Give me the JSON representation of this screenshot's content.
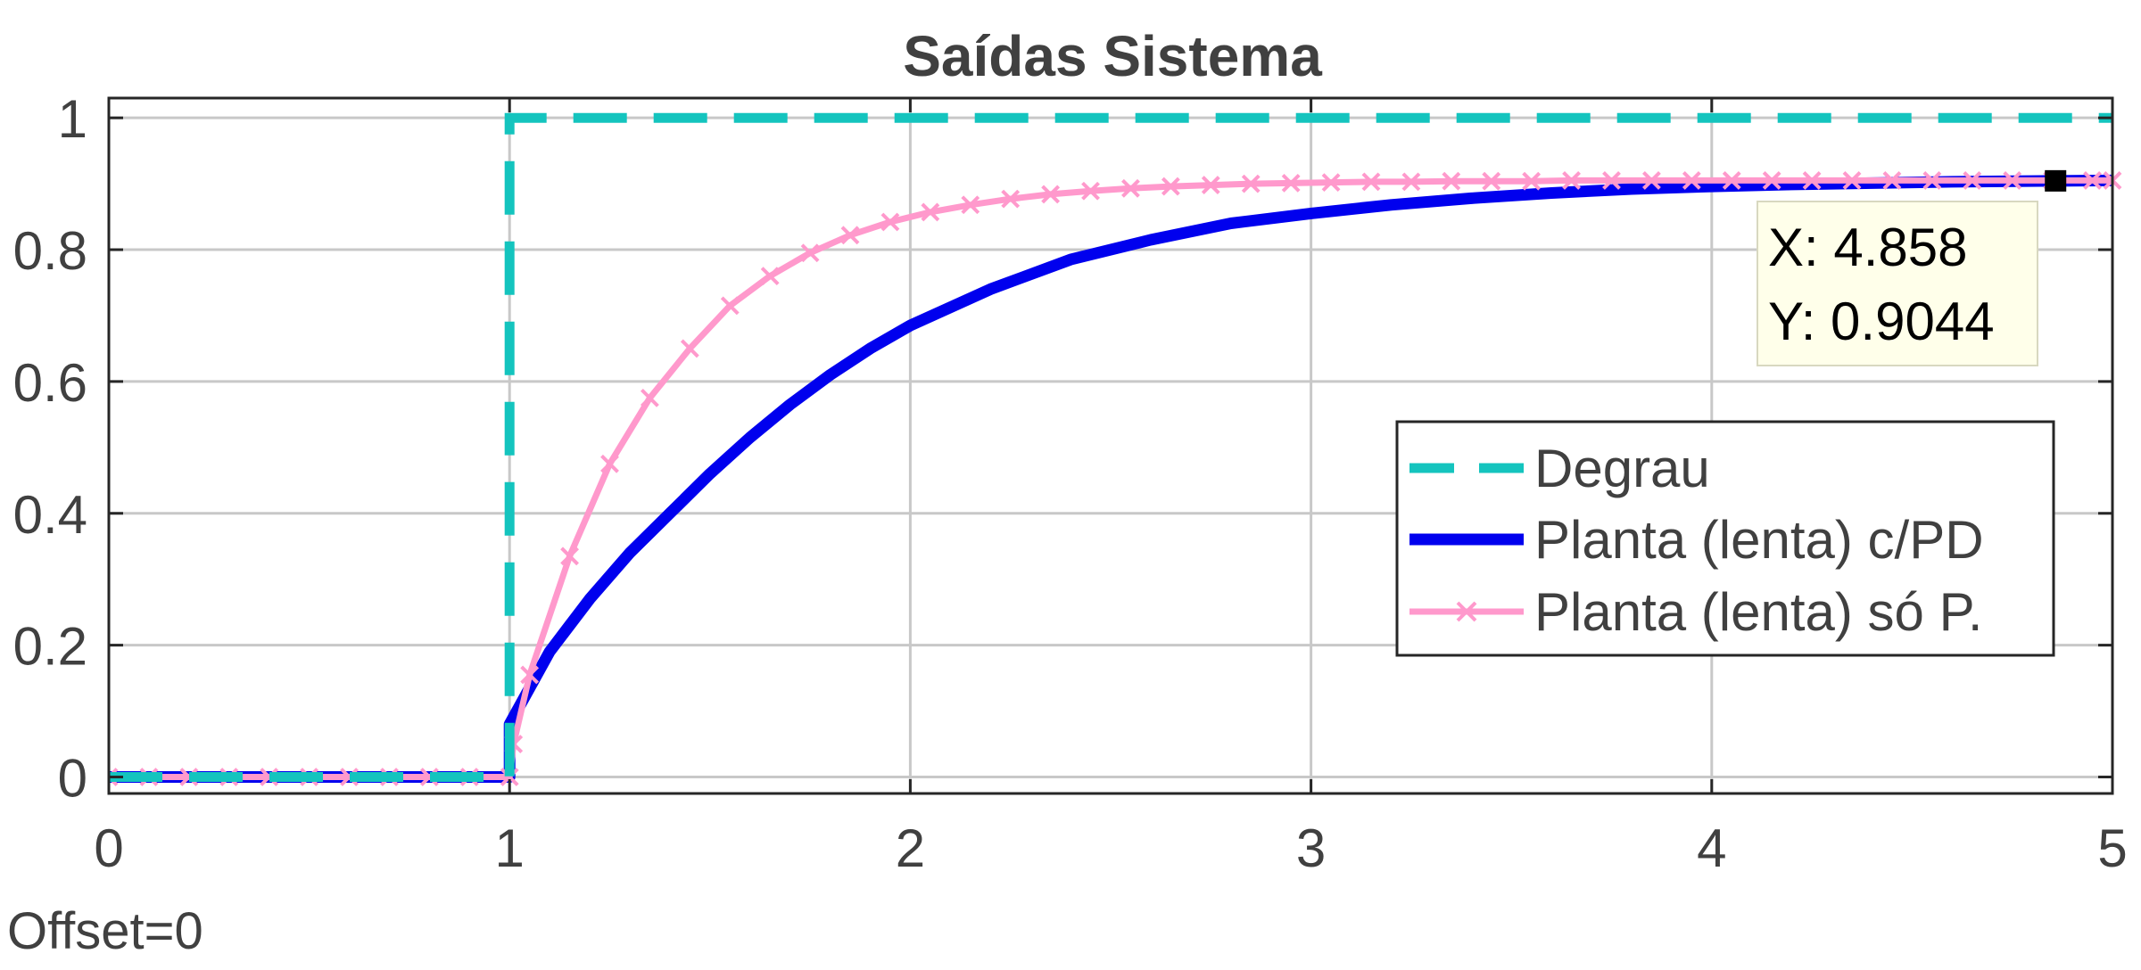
{
  "chart_data": {
    "type": "line",
    "title": "Saídas Sistema",
    "xlabel": "",
    "ylabel": "",
    "xlim": [
      0,
      5
    ],
    "ylim": [
      -0.025,
      1.03
    ],
    "x_ticks": [
      0,
      1,
      2,
      3,
      4,
      5
    ],
    "y_ticks": [
      0,
      0.2,
      0.4,
      0.6,
      0.8,
      1
    ],
    "x_tick_labels": [
      "0",
      "1",
      "2",
      "3",
      "4",
      "5"
    ],
    "y_tick_labels": [
      "0",
      "0.2",
      "0.4",
      "0.6",
      "0.8",
      "1"
    ],
    "grid": true,
    "legend_position": "right",
    "series": [
      {
        "name": "Degrau",
        "style": "dashed",
        "color": "#14c4be",
        "x": [
          0,
          1,
          1,
          5
        ],
        "y": [
          0,
          0,
          1,
          1
        ]
      },
      {
        "name": "Planta (lenta) c/PD",
        "style": "solid-thick",
        "color": "#0000ee",
        "x": [
          0,
          1,
          1,
          1.1,
          1.2,
          1.3,
          1.4,
          1.5,
          1.6,
          1.7,
          1.8,
          1.9,
          2.0,
          2.2,
          2.4,
          2.6,
          2.8,
          3.0,
          3.2,
          3.4,
          3.6,
          3.8,
          4.0,
          4.2,
          4.4,
          4.6,
          4.858,
          5.0
        ],
        "y": [
          0,
          0,
          0.08,
          0.19,
          0.27,
          0.34,
          0.4,
          0.46,
          0.515,
          0.565,
          0.61,
          0.65,
          0.685,
          0.74,
          0.785,
          0.815,
          0.84,
          0.855,
          0.868,
          0.878,
          0.886,
          0.892,
          0.896,
          0.899,
          0.901,
          0.903,
          0.9044,
          0.905
        ]
      },
      {
        "name": "Planta (lenta) só P.",
        "style": "solid-marker-x",
        "color": "#ff99cc",
        "x": [
          0,
          0.1,
          0.2,
          0.3,
          0.4,
          0.5,
          0.6,
          0.7,
          0.8,
          0.9,
          1.0,
          1.01,
          1.05,
          1.15,
          1.25,
          1.35,
          1.45,
          1.55,
          1.65,
          1.75,
          1.85,
          1.95,
          2.05,
          2.15,
          2.25,
          2.35,
          2.45,
          2.55,
          2.65,
          2.75,
          2.85,
          2.95,
          3.05,
          3.15,
          3.25,
          3.35,
          3.45,
          3.55,
          3.65,
          3.75,
          3.85,
          3.95,
          4.05,
          4.15,
          4.25,
          4.35,
          4.45,
          4.55,
          4.65,
          4.75,
          4.85,
          4.95,
          5.0
        ],
        "y": [
          0,
          0,
          0,
          0,
          0,
          0,
          0,
          0,
          0,
          0,
          0,
          0.05,
          0.155,
          0.335,
          0.475,
          0.575,
          0.65,
          0.715,
          0.76,
          0.795,
          0.822,
          0.842,
          0.857,
          0.868,
          0.877,
          0.884,
          0.889,
          0.893,
          0.896,
          0.898,
          0.9,
          0.901,
          0.902,
          0.903,
          0.903,
          0.904,
          0.904,
          0.904,
          0.905,
          0.905,
          0.905,
          0.905,
          0.905,
          0.905,
          0.905,
          0.905,
          0.905,
          0.905,
          0.905,
          0.905,
          0.905,
          0.905,
          0.905
        ]
      }
    ],
    "datatip": {
      "x_text": "X: 4.858",
      "y_text": "Y: 0.9044",
      "x": 4.858,
      "y": 0.9044
    },
    "footer_text": "Offset=0"
  },
  "colors": {
    "axis": "#262626",
    "grid": "#c8c8c8",
    "text": "#404040",
    "tip_bg": "#ffffea",
    "tip_border": "#d8d8c0"
  }
}
